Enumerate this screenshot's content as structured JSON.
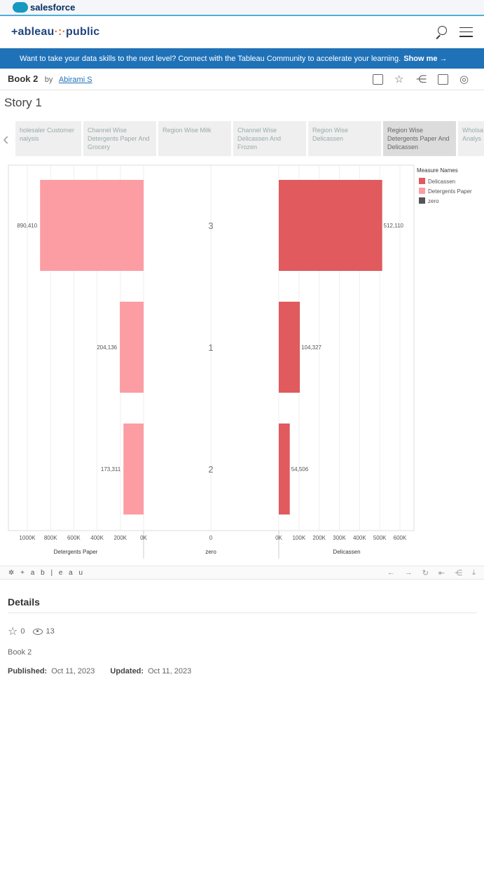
{
  "brand": {
    "salesforce": "salesforce",
    "tableau_logo_prefix": "+ableau",
    "tableau_logo_dots": "·:·",
    "tableau_logo_suffix": "public"
  },
  "banner": {
    "text": "Want to take your data skills to the next level? Connect with the Tableau Community to accelerate your learning.",
    "link": "Show me →"
  },
  "book": {
    "title": "Book 2",
    "by": "by",
    "author": "Abirami S"
  },
  "story": {
    "title": "Story 1"
  },
  "tabs": [
    {
      "label": "holesaler Customer nalysis"
    },
    {
      "label": "Channel Wise Detergents Paper And Grocery"
    },
    {
      "label": "Region Wise Milk"
    },
    {
      "label": "Channel Wise Delicassen And Frozen"
    },
    {
      "label": "Region Wise Delicassen"
    },
    {
      "label": "Region Wise Detergents Paper And Delicassen"
    },
    {
      "label": "Wholsa Analys"
    }
  ],
  "chart_data": {
    "type": "bar",
    "categories": [
      "3",
      "1",
      "2"
    ],
    "series": [
      {
        "name": "Detergents Paper",
        "values": [
          890410,
          204136,
          173311
        ],
        "labels": [
          "890,410",
          "204,136",
          "173,311"
        ],
        "color": "#fc9da3"
      },
      {
        "name": "zero",
        "values": [
          0,
          0,
          0
        ],
        "color": "#555555"
      },
      {
        "name": "Delicassen",
        "values": [
          512110,
          104327,
          54506
        ],
        "labels": [
          "512,110",
          "104,327",
          "54,506"
        ],
        "color": "#e05a5e"
      }
    ],
    "panels": [
      {
        "axis_title": "Detergents Paper",
        "ticks": [
          "1000K",
          "800K",
          "600K",
          "400K",
          "200K",
          "0K"
        ],
        "range": [
          1000000,
          0
        ]
      },
      {
        "axis_title": "zero",
        "ticks": [
          "0"
        ]
      },
      {
        "axis_title": "Delicassen",
        "ticks": [
          "0K",
          "100K",
          "200K",
          "300K",
          "400K",
          "500K",
          "600K"
        ],
        "range": [
          0,
          600000
        ]
      }
    ],
    "legend": {
      "title": "Measure Names",
      "items": [
        {
          "name": "Delicassen",
          "color": "#e05a5e"
        },
        {
          "name": "Detergents Paper",
          "color": "#fc9da3"
        },
        {
          "name": "zero",
          "color": "#555555"
        }
      ],
      "position": "top-right"
    }
  },
  "footer": {
    "logo": "✲ + a b | e a u"
  },
  "details": {
    "heading": "Details",
    "favorites": "0",
    "views": "13",
    "name": "Book 2",
    "published_label": "Published:",
    "published": "Oct 11, 2023",
    "updated_label": "Updated:",
    "updated": "Oct 11, 2023"
  }
}
